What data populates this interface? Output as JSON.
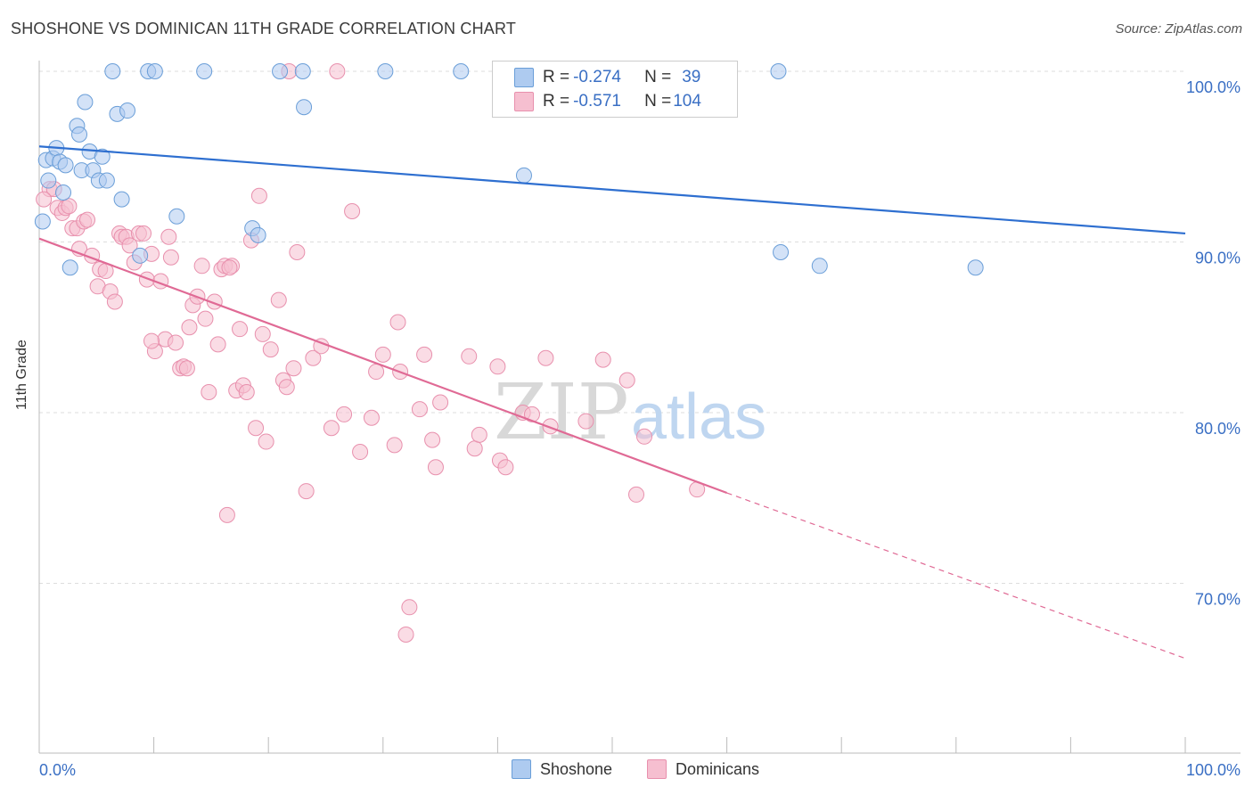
{
  "title": "SHOSHONE VS DOMINICAN 11TH GRADE CORRELATION CHART",
  "source": "Source: ZipAtlas.com",
  "watermark": {
    "zip": "ZIP",
    "atlas": "atlas"
  },
  "legend": {
    "rows": [
      {
        "r_label": "R = ",
        "r_value": "-0.274",
        "n_label": "N = ",
        "n_value": "39"
      },
      {
        "r_label": "R = ",
        "r_value": "-0.571",
        "n_label": "N = ",
        "n_value": "104"
      }
    ]
  },
  "colors": {
    "blue_fill": "#aecbf0",
    "blue_stroke": "#6a9ed8",
    "blue_line": "#2e6fd0",
    "pink_fill": "#f6bfd0",
    "pink_stroke": "#e890ad",
    "pink_line": "#e06a95",
    "axis_label": "#3a6fc4",
    "grid": "#dddddd"
  },
  "chart_data": {
    "type": "scatter",
    "title": "SHOSHONE VS DOMINICAN 11TH GRADE CORRELATION CHART",
    "xlabel": "",
    "ylabel": "11th Grade",
    "xlim": [
      0,
      100
    ],
    "ylim": [
      63,
      101.5
    ],
    "x_tick_labels": [
      "0.0%",
      "100.0%"
    ],
    "y_ticks": [
      70,
      80,
      90,
      100
    ],
    "y_tick_labels": [
      "70.0%",
      "80.0%",
      "90.0%",
      "100.0%"
    ],
    "grid": true,
    "legend_position": "bottom",
    "series": [
      {
        "name": "Shoshone",
        "r": -0.274,
        "n": 39,
        "trend": {
          "x0": 0,
          "y0": 95.6,
          "x1": 100,
          "y1": 90.5
        },
        "points": [
          [
            0.3,
            91.2
          ],
          [
            0.6,
            94.8
          ],
          [
            0.8,
            93.6
          ],
          [
            1.2,
            94.9
          ],
          [
            1.5,
            95.5
          ],
          [
            1.8,
            94.7
          ],
          [
            2.1,
            92.9
          ],
          [
            2.3,
            94.5
          ],
          [
            2.7,
            88.5
          ],
          [
            3.3,
            96.8
          ],
          [
            3.5,
            96.3
          ],
          [
            3.7,
            94.2
          ],
          [
            4.0,
            98.2
          ],
          [
            4.4,
            95.3
          ],
          [
            4.7,
            94.2
          ],
          [
            5.2,
            93.6
          ],
          [
            5.5,
            95.0
          ],
          [
            5.9,
            93.6
          ],
          [
            6.4,
            100.0
          ],
          [
            6.8,
            97.5
          ],
          [
            7.2,
            92.5
          ],
          [
            7.7,
            97.7
          ],
          [
            8.8,
            89.2
          ],
          [
            9.5,
            100.0
          ],
          [
            10.1,
            100.0
          ],
          [
            12.0,
            91.5
          ],
          [
            14.4,
            100.0
          ],
          [
            18.6,
            90.8
          ],
          [
            19.1,
            90.4
          ],
          [
            21.0,
            100.0
          ],
          [
            23.0,
            100.0
          ],
          [
            23.1,
            97.9
          ],
          [
            30.2,
            100.0
          ],
          [
            36.8,
            100.0
          ],
          [
            42.3,
            93.9
          ],
          [
            64.5,
            100.0
          ],
          [
            64.7,
            89.4
          ],
          [
            68.1,
            88.6
          ],
          [
            81.7,
            88.5
          ]
        ]
      },
      {
        "name": "Dominicans",
        "r": -0.571,
        "n": 104,
        "trend": {
          "x0": 0,
          "y0": 90.2,
          "x1": 60,
          "y1": 75.3
        },
        "trend_extension": {
          "x0": 60,
          "y0": 75.3,
          "x1": 100,
          "y1": 65.6
        },
        "points": [
          [
            0.9,
            93.1
          ],
          [
            1.3,
            93.1
          ],
          [
            1.6,
            92.0
          ],
          [
            2.0,
            91.7
          ],
          [
            2.3,
            92.0
          ],
          [
            2.6,
            92.1
          ],
          [
            2.9,
            90.8
          ],
          [
            3.3,
            90.8
          ],
          [
            3.5,
            89.6
          ],
          [
            3.9,
            91.2
          ],
          [
            4.2,
            91.3
          ],
          [
            4.6,
            89.2
          ],
          [
            5.1,
            87.4
          ],
          [
            5.3,
            88.4
          ],
          [
            5.8,
            88.3
          ],
          [
            6.2,
            87.1
          ],
          [
            6.6,
            86.5
          ],
          [
            7.0,
            90.5
          ],
          [
            7.2,
            90.3
          ],
          [
            7.6,
            90.3
          ],
          [
            7.9,
            89.8
          ],
          [
            8.3,
            88.8
          ],
          [
            8.7,
            90.5
          ],
          [
            9.1,
            90.5
          ],
          [
            9.4,
            87.8
          ],
          [
            9.8,
            89.3
          ],
          [
            10.1,
            83.6
          ],
          [
            10.6,
            87.7
          ],
          [
            11.0,
            84.3
          ],
          [
            11.3,
            90.3
          ],
          [
            11.5,
            89.1
          ],
          [
            11.9,
            84.1
          ],
          [
            12.3,
            82.6
          ],
          [
            12.6,
            82.7
          ],
          [
            12.9,
            82.6
          ],
          [
            13.1,
            85.0
          ],
          [
            13.4,
            86.3
          ],
          [
            13.8,
            86.8
          ],
          [
            14.2,
            88.6
          ],
          [
            14.5,
            85.5
          ],
          [
            14.8,
            81.2
          ],
          [
            15.3,
            86.5
          ],
          [
            15.6,
            84.0
          ],
          [
            15.9,
            88.4
          ],
          [
            16.2,
            88.6
          ],
          [
            16.4,
            74.0
          ],
          [
            16.8,
            88.6
          ],
          [
            17.2,
            81.3
          ],
          [
            17.5,
            84.9
          ],
          [
            17.8,
            81.6
          ],
          [
            18.1,
            81.2
          ],
          [
            18.5,
            90.1
          ],
          [
            18.9,
            79.1
          ],
          [
            19.2,
            92.7
          ],
          [
            19.5,
            84.6
          ],
          [
            19.8,
            78.3
          ],
          [
            20.2,
            83.7
          ],
          [
            20.9,
            86.6
          ],
          [
            21.3,
            81.9
          ],
          [
            21.6,
            81.5
          ],
          [
            22.2,
            82.6
          ],
          [
            22.5,
            89.4
          ],
          [
            23.3,
            75.4
          ],
          [
            23.9,
            83.2
          ],
          [
            24.6,
            83.9
          ],
          [
            25.5,
            79.1
          ],
          [
            26.6,
            79.9
          ],
          [
            27.3,
            91.8
          ],
          [
            28.0,
            77.7
          ],
          [
            29.0,
            79.7
          ],
          [
            29.4,
            82.4
          ],
          [
            30.0,
            83.4
          ],
          [
            31.0,
            78.1
          ],
          [
            31.3,
            85.3
          ],
          [
            31.5,
            82.4
          ],
          [
            32.0,
            67.0
          ],
          [
            32.3,
            68.6
          ],
          [
            33.2,
            80.2
          ],
          [
            33.6,
            83.4
          ],
          [
            34.3,
            78.4
          ],
          [
            34.6,
            76.8
          ],
          [
            35.0,
            80.6
          ],
          [
            37.5,
            83.3
          ],
          [
            38.0,
            77.9
          ],
          [
            38.4,
            78.7
          ],
          [
            40.0,
            82.7
          ],
          [
            40.2,
            77.2
          ],
          [
            40.7,
            76.8
          ],
          [
            42.2,
            80.0
          ],
          [
            43.0,
            79.9
          ],
          [
            44.2,
            83.2
          ],
          [
            44.6,
            79.2
          ],
          [
            47.7,
            79.5
          ],
          [
            49.2,
            83.1
          ],
          [
            51.3,
            81.9
          ],
          [
            52.1,
            75.2
          ],
          [
            52.8,
            78.6
          ],
          [
            57.4,
            75.5
          ],
          [
            16.6,
            88.5
          ],
          [
            21.8,
            100.0
          ],
          [
            26.0,
            100.0
          ],
          [
            43.8,
            100.0
          ],
          [
            9.8,
            84.2
          ],
          [
            0.4,
            92.5
          ]
        ]
      }
    ]
  }
}
